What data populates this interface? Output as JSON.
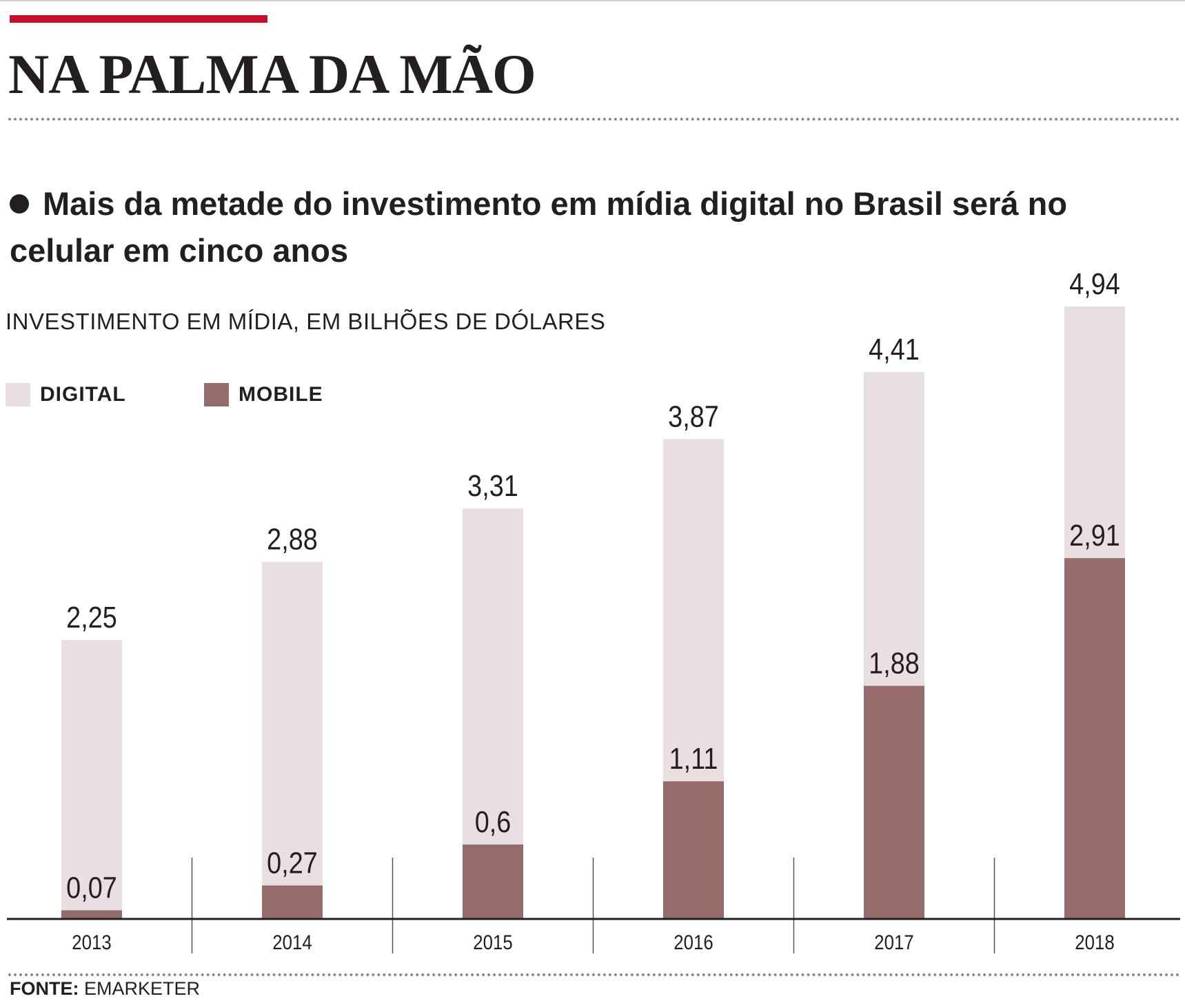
{
  "header": {
    "title": "NA PALMA DA MÃO",
    "subtitle": "Mais da metade do investimento em mídia digital no Brasil será no celular em cinco anos"
  },
  "colors": {
    "accent": "#c8102e",
    "digital": "#eadfe0",
    "mobile": "#956b6c",
    "text": "#231f20"
  },
  "chart_data": {
    "type": "bar",
    "title": "NA PALMA DA MÃO",
    "subtitle": "Mais da metade do investimento em mídia digital no Brasil será no celular em cinco anos",
    "ylabel": "INVESTIMENTO EM MÍDIA, EM BILHÕES DE DÓLARES",
    "xlabel": "",
    "categories": [
      "2013",
      "2014",
      "2015",
      "2016",
      "2017",
      "2018"
    ],
    "series": [
      {
        "name": "DIGITAL",
        "values": [
          2.25,
          2.88,
          3.31,
          3.87,
          4.41,
          4.94
        ],
        "labels": [
          "2,25",
          "2,88",
          "3,31",
          "3,87",
          "4,41",
          "4,94"
        ]
      },
      {
        "name": "MOBILE",
        "values": [
          0.07,
          0.27,
          0.6,
          1.11,
          1.88,
          2.91
        ],
        "labels": [
          "0,07",
          "0,27",
          "0,6",
          "1,11",
          "1,88",
          "2,91"
        ]
      }
    ],
    "ylim": [
      0,
      5
    ],
    "grid": false,
    "legend_position": "top-left",
    "overlay": "mobile bar drawn inside digital bar"
  },
  "source": {
    "label": "FONTE:",
    "name": "EMARKETER"
  }
}
